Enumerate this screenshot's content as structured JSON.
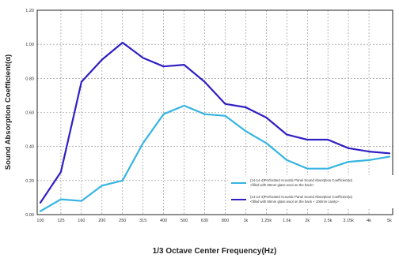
{
  "chart_data": {
    "type": "line",
    "xlabel": "1/3 Octave Center Frequency(Hz)",
    "ylabel": "Sound Absorption Coefficient(α)",
    "categories": [
      "100",
      "125",
      "160",
      "200",
      "250",
      "315",
      "400",
      "500",
      "630",
      "800",
      "1k",
      "1.25k",
      "1.6k",
      "2k",
      "2.5k",
      "3.15k",
      "4k",
      "5k"
    ],
    "ylim": [
      0,
      1.2
    ],
    "yticks": [
      "0.00",
      "0.20",
      "0.40",
      "0.60",
      "0.80",
      "1.00",
      "1.20"
    ],
    "grid": true,
    "legend_position": "bottom-right",
    "series": [
      {
        "name": "(14-14-4)Perforated Acoustic Panel Sound Absorption Coefficient(α)",
        "name_line2": "<filled with 50mm glass wool on the back>",
        "color": "#35b4e2",
        "values": [
          0.02,
          0.09,
          0.08,
          0.17,
          0.2,
          0.42,
          0.59,
          0.64,
          0.59,
          0.58,
          0.49,
          0.42,
          0.32,
          0.27,
          0.27,
          0.31,
          0.32,
          0.34
        ]
      },
      {
        "name": "(14-14-4)Perforated Acoustic Panel Sound Absorption Coefficient(α)",
        "name_line2": "<filled with 50mm glass wool on the back + 100mm cavity>",
        "color": "#2f1fc4",
        "values": [
          0.07,
          0.25,
          0.78,
          0.91,
          1.01,
          0.92,
          0.87,
          0.88,
          0.78,
          0.65,
          0.63,
          0.57,
          0.47,
          0.44,
          0.44,
          0.39,
          0.37,
          0.36
        ]
      }
    ]
  }
}
